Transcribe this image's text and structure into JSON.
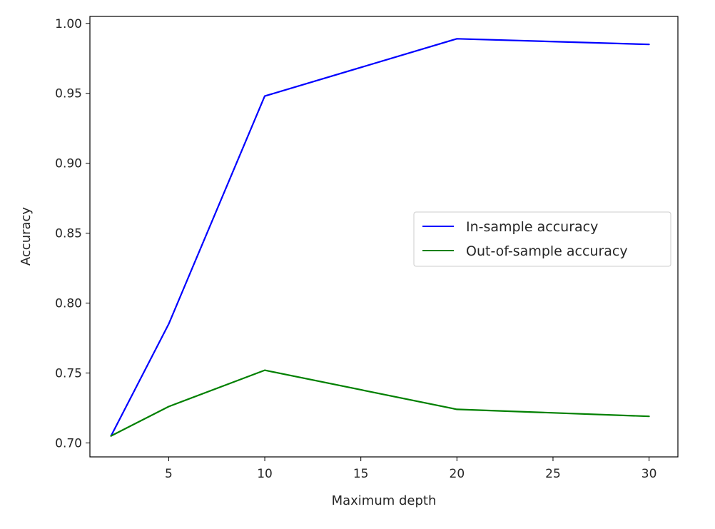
{
  "chart_data": {
    "type": "line",
    "xlabel": "Maximum depth",
    "ylabel": "Accuracy",
    "xlim": [
      0.9,
      31.5
    ],
    "ylim": [
      0.69,
      1.005
    ],
    "xticks": [
      5,
      10,
      15,
      20,
      25,
      30
    ],
    "yticks": [
      0.7,
      0.75,
      0.8,
      0.85,
      0.9,
      0.95,
      1.0
    ],
    "x": [
      2,
      5,
      10,
      20,
      30
    ],
    "series": [
      {
        "name": "In-sample accuracy",
        "color": "#0000ff",
        "values": [
          0.705,
          0.785,
          0.948,
          0.989,
          0.985
        ]
      },
      {
        "name": "Out-of-sample accuracy",
        "color": "#008000",
        "values": [
          0.705,
          0.726,
          0.752,
          0.724,
          0.719
        ]
      }
    ],
    "grid": false,
    "legend": "center-right"
  }
}
